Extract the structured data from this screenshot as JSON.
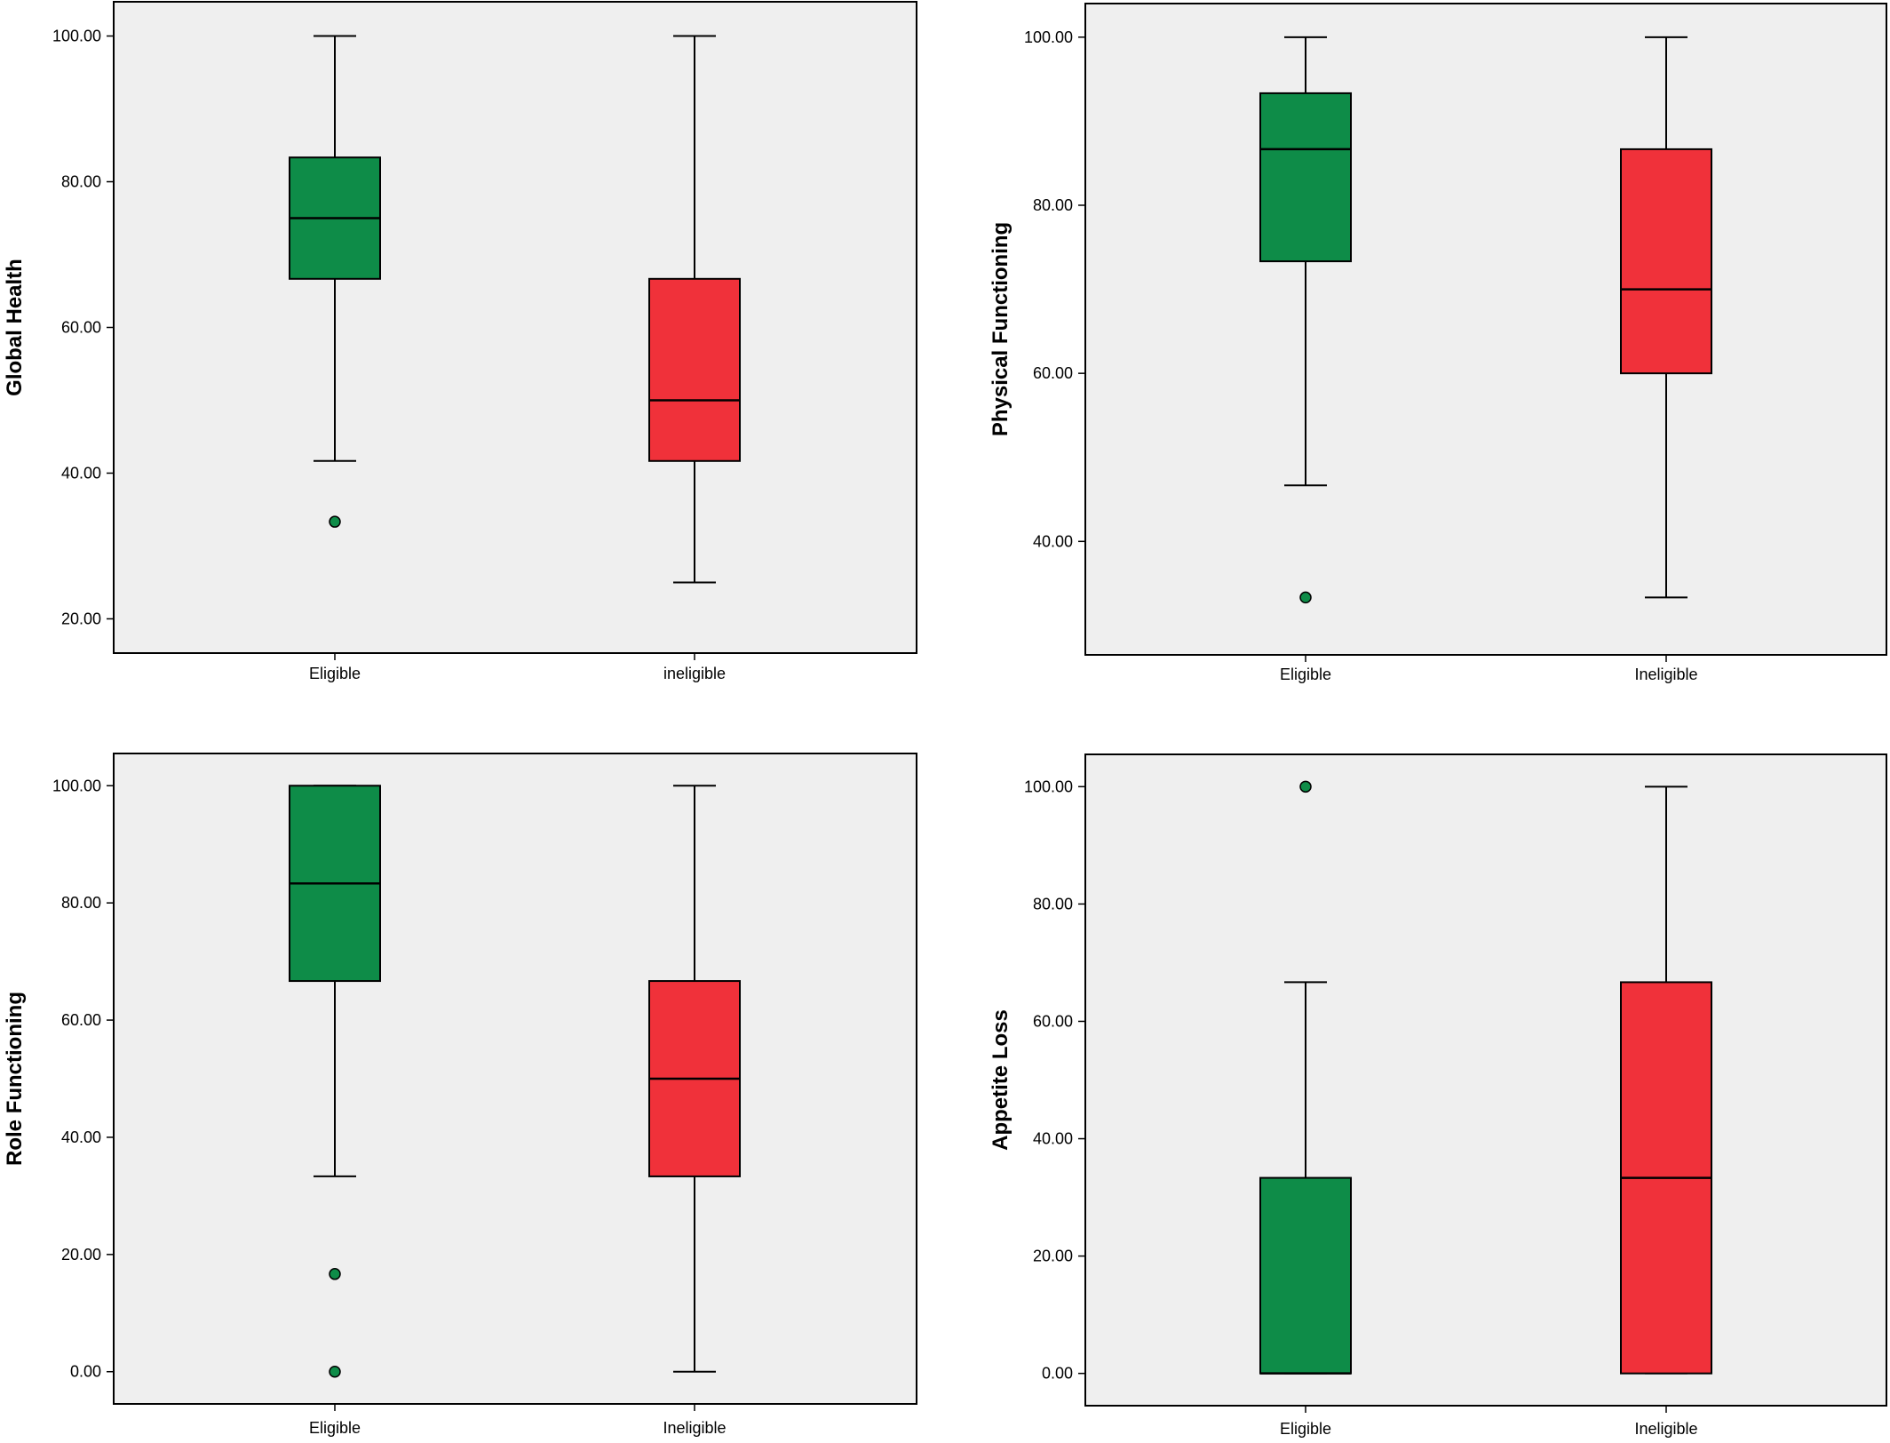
{
  "colors": {
    "eligible_fill": "#0e8c48",
    "ineligible_fill": "#f0313a",
    "plot_background": "#efefef",
    "outline": "#000000"
  },
  "chart_data": [
    {
      "type": "boxplot",
      "ylabel": "Global Health",
      "ylim": [
        15.3,
        104.7
      ],
      "yticks": [
        "20.00",
        "40.00",
        "60.00",
        "80.00",
        "100.00"
      ],
      "categories": [
        "Eligible",
        "ineligible"
      ],
      "boxes": [
        {
          "category": "Eligible",
          "color": "#0e8c48",
          "whisker_low": 41.67,
          "q1": 66.67,
          "median": 75.0,
          "q3": 83.33,
          "whisker_high": 100.0,
          "outliers": [
            33.33
          ]
        },
        {
          "category": "ineligible",
          "color": "#f0313a",
          "whisker_low": 25.0,
          "q1": 41.67,
          "median": 50.0,
          "q3": 66.67,
          "whisker_high": 100.0,
          "outliers": []
        }
      ],
      "grid": false
    },
    {
      "type": "boxplot",
      "ylabel": "Physical Functioning",
      "ylim": [
        26.5,
        104.0
      ],
      "yticks": [
        "40.00",
        "60.00",
        "80.00",
        "100.00"
      ],
      "categories": [
        "Eligible",
        "Ineligible"
      ],
      "boxes": [
        {
          "category": "Eligible",
          "color": "#0e8c48",
          "whisker_low": 46.67,
          "q1": 73.33,
          "median": 86.67,
          "q3": 93.33,
          "whisker_high": 100.0,
          "outliers": [
            33.33
          ]
        },
        {
          "category": "Ineligible",
          "color": "#f0313a",
          "whisker_low": 33.33,
          "q1": 60.0,
          "median": 70.0,
          "q3": 86.67,
          "whisker_high": 100.0,
          "outliers": []
        }
      ],
      "grid": false
    },
    {
      "type": "boxplot",
      "ylabel": "Role Functioning",
      "ylim": [
        -5.5,
        105.5
      ],
      "yticks": [
        "0.00",
        "20.00",
        "40.00",
        "60.00",
        "80.00",
        "100.00"
      ],
      "categories": [
        "Eligible",
        "Ineligible"
      ],
      "boxes": [
        {
          "category": "Eligible",
          "color": "#0e8c48",
          "whisker_low": 33.33,
          "q1": 66.67,
          "median": 83.33,
          "q3": 100.0,
          "whisker_high": 100.0,
          "outliers": [
            16.67,
            0.0
          ]
        },
        {
          "category": "Ineligible",
          "color": "#f0313a",
          "whisker_low": 0.0,
          "q1": 33.33,
          "median": 50.0,
          "q3": 66.67,
          "whisker_high": 100.0,
          "outliers": []
        }
      ],
      "grid": false
    },
    {
      "type": "boxplot",
      "ylabel": "Appetite Loss",
      "ylim": [
        -5.5,
        105.5
      ],
      "yticks": [
        "0.00",
        "20.00",
        "40.00",
        "60.00",
        "80.00",
        "100.00"
      ],
      "categories": [
        "Eligible",
        "Ineligible"
      ],
      "boxes": [
        {
          "category": "Eligible",
          "color": "#0e8c48",
          "whisker_low": 0.0,
          "q1": 0.0,
          "median": 0.0,
          "q3": 33.33,
          "whisker_high": 66.67,
          "outliers": [
            100.0
          ]
        },
        {
          "category": "Ineligible",
          "color": "#f0313a",
          "whisker_low": 0.0,
          "q1": 0.0,
          "median": 33.33,
          "q3": 66.67,
          "whisker_high": 100.0,
          "outliers": []
        }
      ],
      "grid": false
    }
  ]
}
